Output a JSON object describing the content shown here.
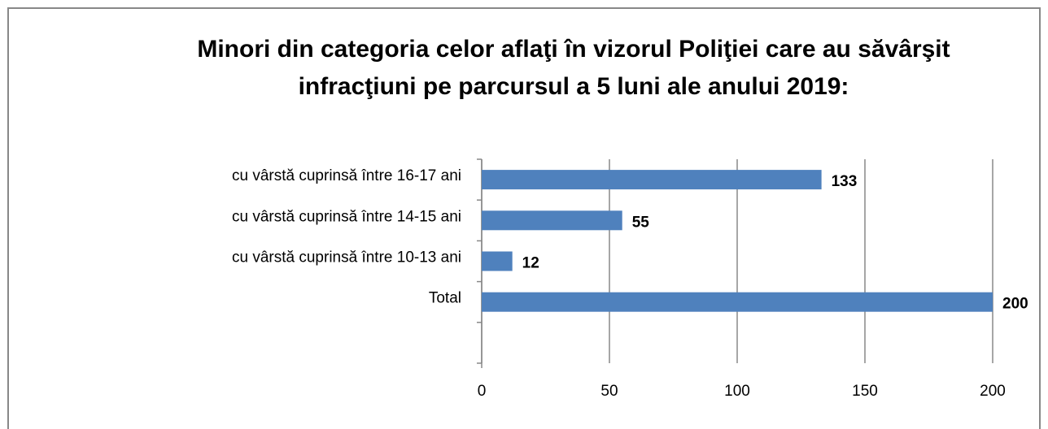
{
  "chart_data": {
    "type": "bar",
    "orientation": "horizontal",
    "title": "Minori din categoria celor aflaţi în vizorul Poliţiei care au săvârşit infracţiuni pe parcursul a 5 luni ale anului 2019:",
    "categories": [
      "cu vârstă cuprinsă între 16-17 ani",
      "cu vârstă cuprinsă între 14-15 ani",
      "cu vârstă cuprinsă între 10-13 ani",
      "Total",
      null
    ],
    "values": [
      133,
      55,
      12,
      200,
      null
    ],
    "color": "#4f81bd",
    "xlim": [
      0,
      200
    ],
    "xticks": [
      0,
      50,
      100,
      150,
      200
    ],
    "grid": true
  }
}
